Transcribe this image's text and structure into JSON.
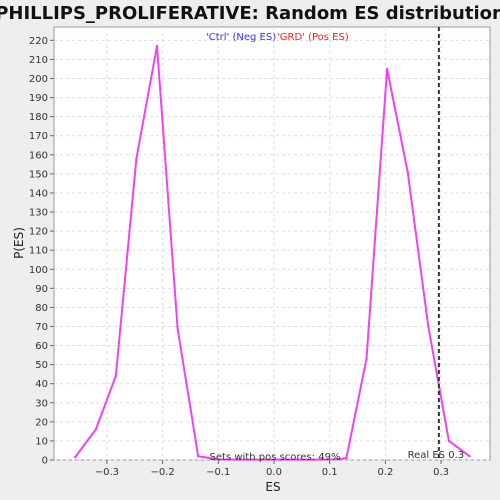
{
  "chart_data": {
    "type": "line",
    "title": "PHILLIPS_PROLIFERATIVE: Random ES distribution",
    "xlabel": "ES",
    "ylabel": "P(ES)",
    "xlim": [
      -0.4,
      0.4
    ],
    "ylim": [
      0,
      227
    ],
    "xticks": [
      -0.3,
      -0.2,
      -0.1,
      0.0,
      0.1,
      0.2,
      0.3
    ],
    "xtick_labels": [
      "−0.3",
      "−0.2",
      "−0.1",
      "0.0",
      "0.1",
      "0.2",
      "0.3"
    ],
    "yticks": [
      0,
      10,
      20,
      30,
      40,
      50,
      60,
      70,
      80,
      90,
      100,
      110,
      120,
      130,
      140,
      150,
      160,
      170,
      180,
      190,
      200,
      210,
      220
    ],
    "grid": true,
    "series": [
      {
        "color": "#ee44ee",
        "x": [
          -0.357,
          -0.32,
          -0.284,
          -0.247,
          -0.21,
          -0.173,
          -0.136,
          -0.1,
          -0.063,
          -0.026,
          0.011,
          0.048,
          0.084,
          0.113,
          0.13,
          0.166,
          0.203,
          0.24,
          0.277,
          0.314,
          0.351
        ],
        "y": [
          1.5,
          16,
          44,
          158,
          217,
          69,
          2,
          0.3,
          0.2,
          0.2,
          0.2,
          0.2,
          0.2,
          0.4,
          1,
          53,
          205,
          151,
          70,
          10,
          2
        ]
      }
    ],
    "legend": {
      "placement": "top-center",
      "entries": [
        {
          "label": "'Ctrl' (Neg ES)",
          "color": "#3333ee"
        },
        {
          "label": "'GRD' (Pos ES)",
          "color": "#ee2222"
        }
      ]
    },
    "reference_line": {
      "x": 0.296,
      "label": "Real ES 0.3",
      "color": "#333333"
    },
    "annotation": "Sets with pos scores: 49%"
  }
}
